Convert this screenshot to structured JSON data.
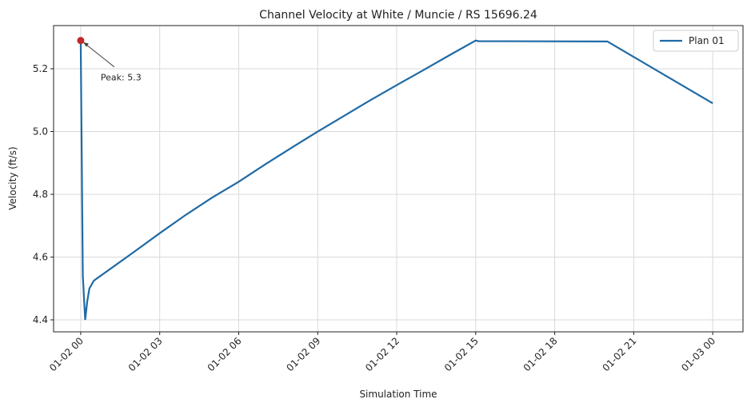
{
  "chart_data": {
    "type": "line",
    "title": "Channel Velocity at White / Muncie / RS 15696.24",
    "x_label": "Simulation Time",
    "y_label": "Velocity (ft/s)",
    "x": [
      0,
      0.08,
      0.17,
      0.25,
      0.33,
      0.5,
      0.75,
      1,
      2,
      3,
      4,
      5,
      6,
      7,
      8,
      9,
      10,
      11,
      12,
      13,
      14,
      15,
      15.1,
      20,
      24
    ],
    "series": [
      {
        "name": "Plan 01",
        "color": "#1f6aa5",
        "values": [
          5.29,
          4.54,
          4.4,
          4.46,
          4.5,
          4.525,
          4.54,
          4.555,
          4.615,
          4.676,
          4.735,
          4.79,
          4.84,
          4.895,
          4.948,
          5.0,
          5.05,
          5.1,
          5.148,
          5.195,
          5.243,
          5.29,
          5.288,
          5.287,
          5.09
        ]
      }
    ],
    "annotation": "Peak: 5.3",
    "peak_color": "#c0282a",
    "xlim": [
      -1.03,
      25.15
    ],
    "xticks": [
      {
        "value": 0,
        "label": "01-02 00"
      },
      {
        "value": 3,
        "label": "01-02 03"
      },
      {
        "value": 6,
        "label": "01-02 06"
      },
      {
        "value": 9,
        "label": "01-02 09"
      },
      {
        "value": 12,
        "label": "01-02 12"
      },
      {
        "value": 15,
        "label": "01-02 15"
      },
      {
        "value": 18,
        "label": "01-02 18"
      },
      {
        "value": 21,
        "label": "01-02 21"
      },
      {
        "value": 24,
        "label": "01-03 00"
      }
    ],
    "ylim": [
      4.3618,
      5.3376
    ],
    "yticks": [
      4.4,
      4.6,
      4.8,
      {
        "value": 5,
        "label": "5.0"
      },
      5.2
    ],
    "grid": true,
    "legend": "upper right"
  }
}
